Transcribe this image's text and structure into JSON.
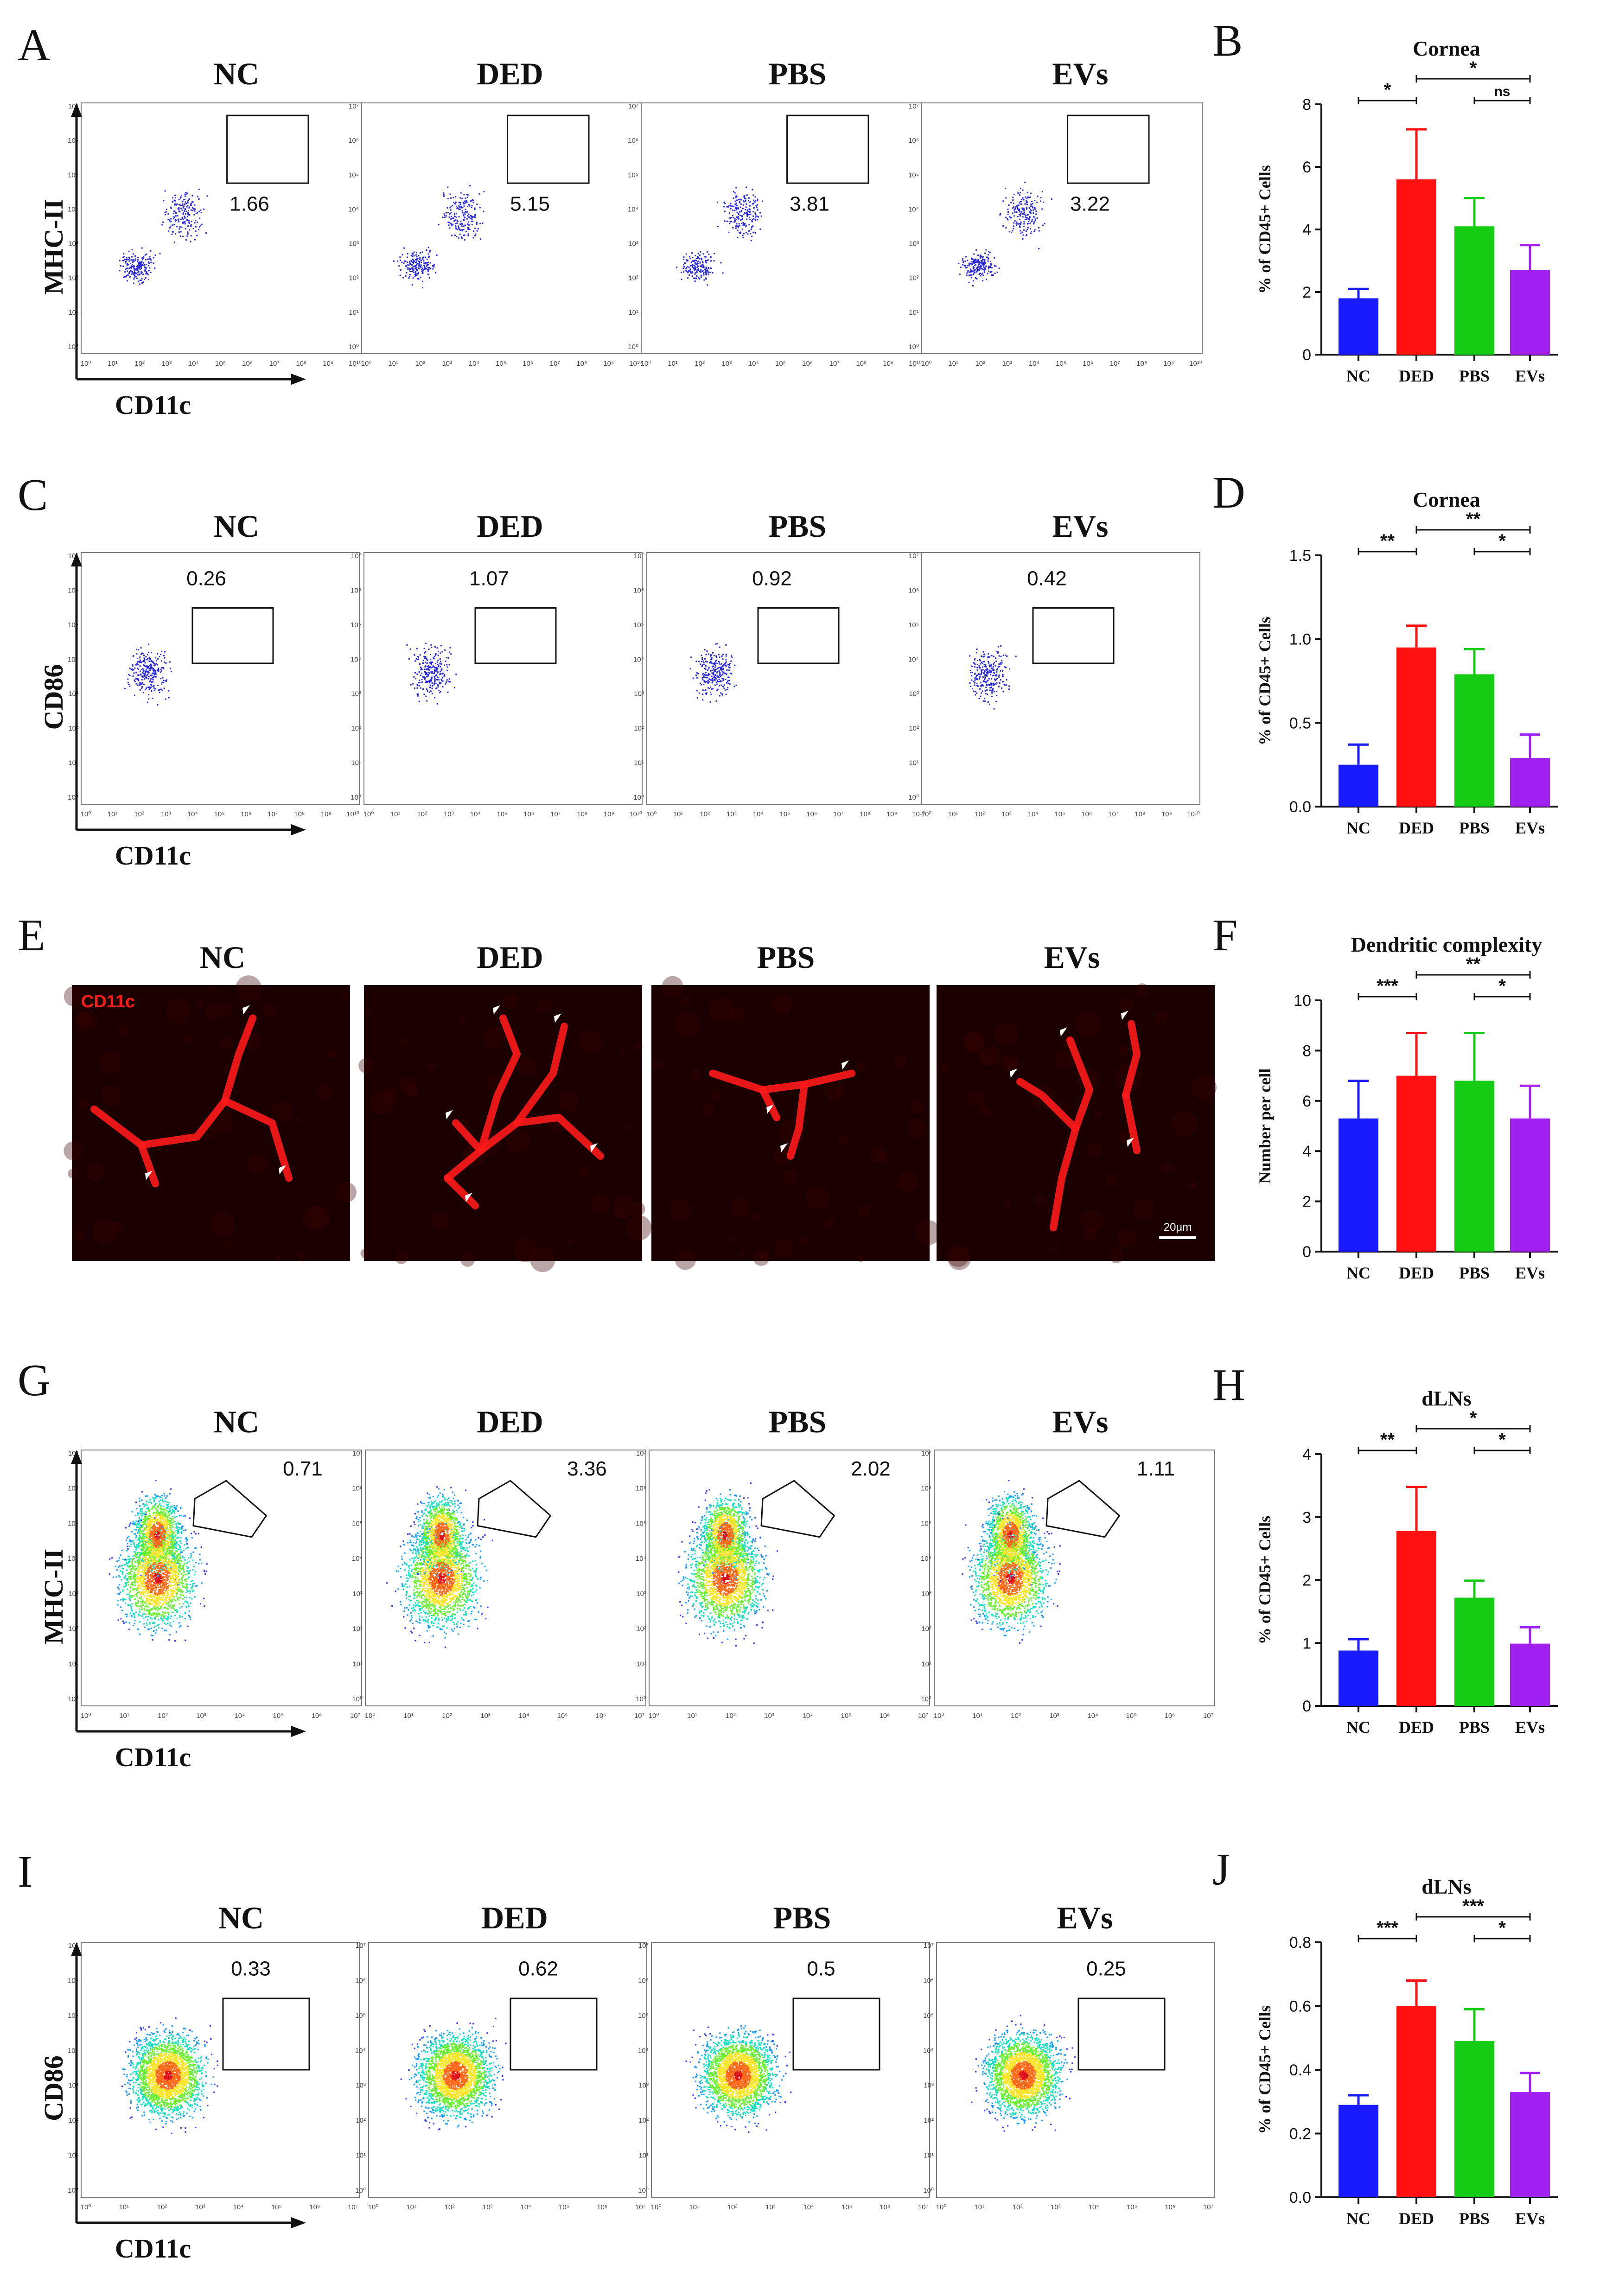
{
  "panel_letters": {
    "A": "A",
    "B": "B",
    "C": "C",
    "D": "D",
    "E": "E",
    "F": "F",
    "G": "G",
    "H": "H",
    "I": "I",
    "J": "J"
  },
  "groups": [
    "NC",
    "DED",
    "PBS",
    "EVs"
  ],
  "axis_labels": {
    "mhc": "MHC-II",
    "cd86": "CD86",
    "cd11c": "CD11c"
  },
  "tick_labels": {
    "ten10": [
      "10⁰",
      "10¹",
      "10²",
      "10³",
      "10⁴",
      "10⁵",
      "10⁶",
      "10⁷",
      "10⁸",
      "10⁹",
      "10¹⁰"
    ],
    "ten7": [
      "10⁰",
      "10¹",
      "10²",
      "10³",
      "10⁴",
      "10⁵",
      "10⁶",
      "10⁷"
    ],
    "cytometry_y": [
      "10⁰",
      "10¹",
      "10²",
      "10³",
      "10⁴",
      "10⁵",
      "10⁶",
      "10⁷"
    ]
  },
  "gate_values": {
    "A": [
      "1.66",
      "5.15",
      "3.81",
      "3.22"
    ],
    "C": [
      "0.26",
      "1.07",
      "0.92",
      "0.42"
    ],
    "G": [
      "0.71",
      "3.36",
      "2.02",
      "1.11"
    ],
    "I": [
      "0.33",
      "0.62",
      "0.5",
      "0.25"
    ]
  },
  "image_panel": {
    "stain_label": "CD11c",
    "scale_bar": "20μm"
  },
  "colors": {
    "NC": "#1a1aff",
    "DED": "#ff1010",
    "PBS": "#14cc14",
    "EVs": "#a020f0",
    "stain": "#ff1a1a"
  },
  "chart_data": [
    {
      "panel": "B",
      "type": "bar",
      "title": "Cornea",
      "ylabel": "% of CD45+ Cells",
      "categories": [
        "NC",
        "DED",
        "PBS",
        "EVs"
      ],
      "values": [
        1.8,
        5.6,
        4.1,
        2.7
      ],
      "errors": [
        0.3,
        1.6,
        0.9,
        0.8
      ],
      "ylim": [
        0,
        8
      ],
      "yticks": [
        0,
        2,
        4,
        6,
        8
      ],
      "ytick_labels": [
        "0",
        "2",
        "4",
        "6",
        "8"
      ],
      "significance": [
        {
          "from": "NC",
          "to": "DED",
          "label": "*"
        },
        {
          "from": "DED",
          "to": "EVs",
          "label": "*"
        },
        {
          "from": "PBS",
          "to": "EVs",
          "label": "ns"
        }
      ]
    },
    {
      "panel": "D",
      "type": "bar",
      "title": "Cornea",
      "ylabel": "% of CD45+ Cells",
      "categories": [
        "NC",
        "DED",
        "PBS",
        "EVs"
      ],
      "values": [
        0.25,
        0.95,
        0.79,
        0.29
      ],
      "errors": [
        0.12,
        0.13,
        0.15,
        0.14
      ],
      "ylim": [
        0,
        1.5
      ],
      "yticks": [
        0,
        0.5,
        1.0,
        1.5
      ],
      "ytick_labels": [
        "0.0",
        "0.5",
        "1.0",
        "1.5"
      ],
      "significance": [
        {
          "from": "NC",
          "to": "DED",
          "label": "**"
        },
        {
          "from": "DED",
          "to": "EVs",
          "label": "**"
        },
        {
          "from": "PBS",
          "to": "EVs",
          "label": "*"
        }
      ]
    },
    {
      "panel": "F",
      "type": "bar",
      "title": "Dendritic complexity",
      "ylabel": "Number per cell",
      "categories": [
        "NC",
        "DED",
        "PBS",
        "EVs"
      ],
      "values": [
        5.3,
        7.0,
        6.8,
        5.3
      ],
      "errors": [
        1.5,
        1.7,
        1.9,
        1.3
      ],
      "ylim": [
        0,
        10
      ],
      "yticks": [
        0,
        2,
        4,
        6,
        8,
        10
      ],
      "ytick_labels": [
        "0",
        "2",
        "4",
        "6",
        "8",
        "10"
      ],
      "significance": [
        {
          "from": "NC",
          "to": "DED",
          "label": "***"
        },
        {
          "from": "DED",
          "to": "EVs",
          "label": "**"
        },
        {
          "from": "PBS",
          "to": "EVs",
          "label": "*"
        }
      ]
    },
    {
      "panel": "H",
      "type": "bar",
      "title": "dLNs",
      "ylabel": "% of CD45+ Cells",
      "categories": [
        "NC",
        "DED",
        "PBS",
        "EVs"
      ],
      "values": [
        0.88,
        2.78,
        1.72,
        0.99
      ],
      "errors": [
        0.18,
        0.7,
        0.27,
        0.26
      ],
      "ylim": [
        0,
        4
      ],
      "yticks": [
        0,
        1,
        2,
        3,
        4
      ],
      "ytick_labels": [
        "0",
        "1",
        "2",
        "3",
        "4"
      ],
      "significance": [
        {
          "from": "NC",
          "to": "DED",
          "label": "**"
        },
        {
          "from": "DED",
          "to": "EVs",
          "label": "*"
        },
        {
          "from": "PBS",
          "to": "EVs",
          "label": "*"
        }
      ]
    },
    {
      "panel": "J",
      "type": "bar",
      "title": "dLNs",
      "ylabel": "% of CD45+ Cells",
      "categories": [
        "NC",
        "DED",
        "PBS",
        "EVs"
      ],
      "values": [
        0.29,
        0.6,
        0.49,
        0.33
      ],
      "errors": [
        0.03,
        0.08,
        0.1,
        0.06
      ],
      "ylim": [
        0,
        0.8
      ],
      "yticks": [
        0,
        0.2,
        0.4,
        0.6,
        0.8
      ],
      "ytick_labels": [
        "0.0",
        "0.2",
        "0.4",
        "0.6",
        "0.8"
      ],
      "significance": [
        {
          "from": "NC",
          "to": "DED",
          "label": "***"
        },
        {
          "from": "DED",
          "to": "EVs",
          "label": "***"
        },
        {
          "from": "PBS",
          "to": "EVs",
          "label": "*"
        }
      ]
    }
  ]
}
